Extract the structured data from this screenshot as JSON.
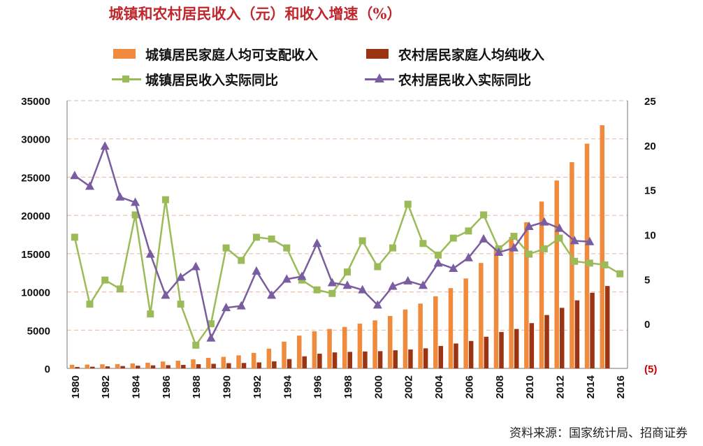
{
  "title": "城镇和农村居民收入（元）和收入增速（%）",
  "source": "资料来源：国家统计局、招商证券",
  "colors": {
    "urban_income": "#f08a3c",
    "rural_income": "#9a3412",
    "urban_growth": "#9bbb59",
    "rural_growth": "#7a5ca0",
    "grid": "#e3b7a0",
    "negative_label": "#cc0000"
  },
  "legend": [
    {
      "key": "urban_income",
      "label": "城镇居民家庭人均可支配收入",
      "marker": "bar"
    },
    {
      "key": "rural_income",
      "label": "农村居民家庭人均纯收入",
      "marker": "bar"
    },
    {
      "key": "urban_growth",
      "label": "城镇居民收入实际同比",
      "marker": "line-square"
    },
    {
      "key": "rural_growth",
      "label": "农村居民收入实际同比",
      "marker": "line-triangle"
    }
  ],
  "chart_data": {
    "type": "bar+line",
    "x": [
      1980,
      1981,
      1982,
      1983,
      1984,
      1985,
      1986,
      1987,
      1988,
      1989,
      1990,
      1991,
      1992,
      1993,
      1994,
      1995,
      1996,
      1997,
      1998,
      1999,
      2000,
      2001,
      2002,
      2003,
      2004,
      2005,
      2006,
      2007,
      2008,
      2009,
      2010,
      2011,
      2012,
      2013,
      2014,
      2015,
      2016
    ],
    "x_tick_labels": [
      "1980",
      "1982",
      "1984",
      "1986",
      "1988",
      "1990",
      "1992",
      "1994",
      "1996",
      "1998",
      "2000",
      "2002",
      "2004",
      "2006",
      "2008",
      "2010",
      "2012",
      "2014",
      "2016"
    ],
    "left_axis": {
      "ylim": [
        0,
        35000
      ],
      "ticks": [
        "0",
        "5000",
        "10000",
        "15000",
        "20000",
        "25000",
        "30000",
        "35000"
      ]
    },
    "right_axis": {
      "ylim": [
        -5,
        25
      ],
      "ticks": [
        "(5)",
        "0",
        "5",
        "10",
        "15",
        "20",
        "25"
      ]
    },
    "grid": true,
    "legend_position": "top",
    "series": [
      {
        "key": "urban_income",
        "axis": "left",
        "type": "bar",
        "values": [
          478,
          500,
          535,
          565,
          652,
          739,
          900,
          1002,
          1181,
          1376,
          1510,
          1701,
          2027,
          2577,
          3496,
          4283,
          4839,
          5160,
          5425,
          5854,
          6280,
          6860,
          7703,
          8472,
          9422,
          10493,
          11759,
          13786,
          15781,
          17175,
          19109,
          21810,
          24565,
          26955,
          29381,
          31790,
          null
        ]
      },
      {
        "key": "rural_income",
        "axis": "left",
        "type": "bar",
        "values": [
          191,
          223,
          270,
          310,
          355,
          398,
          424,
          463,
          545,
          602,
          686,
          709,
          784,
          922,
          1221,
          1578,
          1926,
          2090,
          2162,
          2210,
          2253,
          2366,
          2476,
          2622,
          2936,
          3255,
          3587,
          4140,
          4761,
          5153,
          5919,
          6977,
          7917,
          8896,
          9892,
          10772,
          null
        ]
      },
      {
        "key": "urban_growth",
        "axis": "right",
        "type": "line",
        "values": [
          9.7,
          2.2,
          4.9,
          3.9,
          12.2,
          1.1,
          13.9,
          2.2,
          -2.4,
          0.0,
          8.5,
          7.1,
          9.7,
          9.5,
          8.5,
          4.9,
          3.8,
          3.4,
          5.8,
          9.3,
          6.4,
          8.5,
          13.4,
          9.0,
          7.7,
          9.6,
          10.4,
          12.2,
          8.4,
          9.8,
          7.8,
          8.4,
          9.6,
          7.0,
          6.8,
          6.6,
          5.6
        ]
      },
      {
        "key": "rural_growth",
        "axis": "right",
        "type": "line",
        "values": [
          16.6,
          15.4,
          19.9,
          14.2,
          13.6,
          7.8,
          3.2,
          5.2,
          6.4,
          -1.6,
          1.8,
          2.0,
          5.9,
          3.2,
          5.0,
          5.3,
          9.0,
          4.6,
          4.3,
          3.8,
          2.1,
          4.2,
          4.8,
          4.3,
          6.8,
          6.2,
          7.4,
          9.5,
          8.0,
          8.5,
          10.9,
          11.4,
          10.7,
          9.3,
          9.2,
          null,
          null
        ]
      }
    ]
  }
}
